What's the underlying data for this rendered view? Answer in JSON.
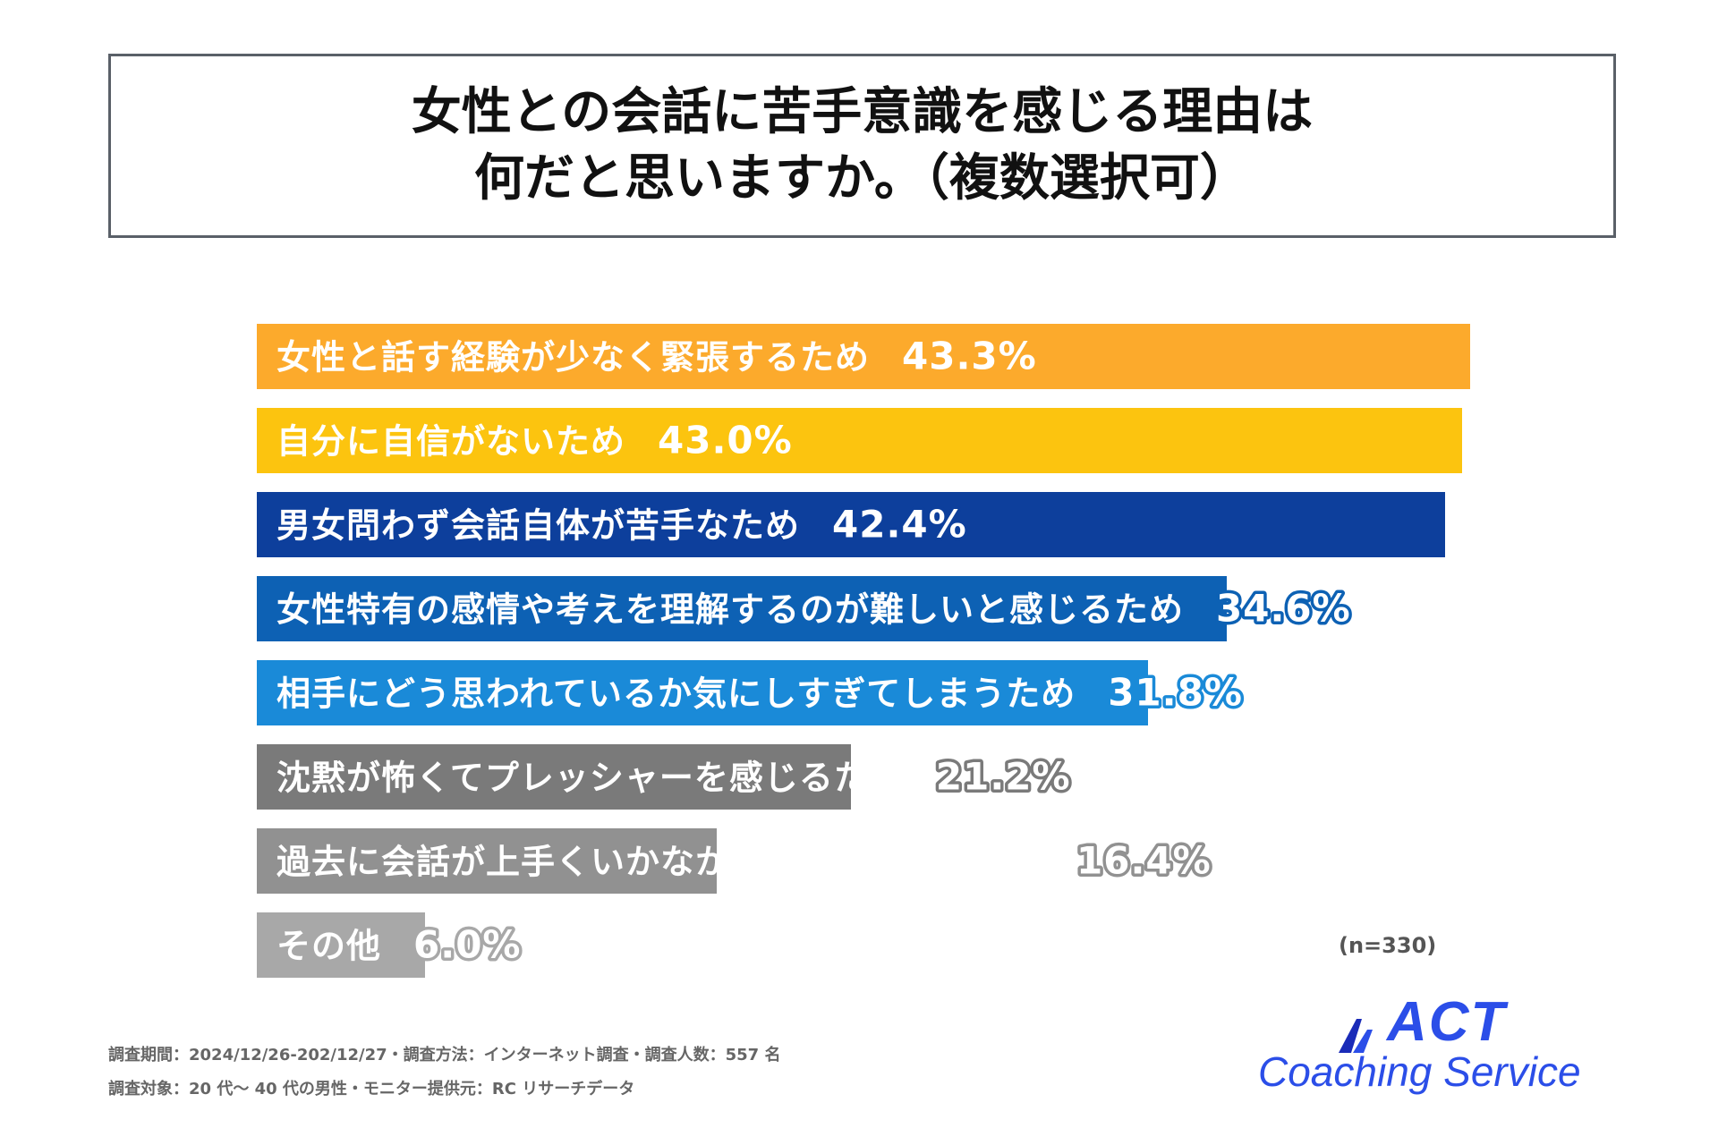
{
  "title": {
    "line1": "女性との会話に苦手意識を感じる理由は",
    "line2": "何だと思いますか。（複数選択可）"
  },
  "chart_data": {
    "type": "bar",
    "orientation": "horizontal",
    "unit": "%",
    "categories": [
      "女性と話す経験が少なく緊張するため",
      "自分に自信がないため",
      "男女問わず会話自体が苦手なため",
      "女性特有の感情や考えを理解するのが難しいと感じるため",
      "相手にどう思われているか気にしすぎてしまうため",
      "沈黙が怖くてプレッシャーを感じるため",
      "過去に会話が上手くいかなかった経験があるため",
      "その他"
    ],
    "values": [
      43.3,
      43.0,
      42.4,
      34.6,
      31.8,
      21.2,
      16.4,
      6.0
    ],
    "value_labels": [
      "43.3%",
      "43.0%",
      "42.4%",
      "34.6%",
      "31.8%",
      "21.2%",
      "16.4%",
      "6.0%"
    ],
    "colors": [
      "#fcaa2c",
      "#fcc40f",
      "#0d3f9c",
      "#0d61b4",
      "#1a8ad8",
      "#7a7a7a",
      "#919191",
      "#a8a8a8"
    ],
    "xlim": [
      0,
      43.3
    ],
    "grid": false,
    "legend": "none"
  },
  "sample_size": "(n=330)",
  "footnotes": {
    "line1": "調査期間：2024/12/26-202/12/27・調査方法：インターネット調査・調査人数：557 名",
    "line2": "調査対象：20 代～ 40 代の男性・モニター提供元：RC リサーチデータ"
  },
  "logo": {
    "main": "ACT",
    "sub": "Coaching Service",
    "color": "#2b4ee8"
  }
}
